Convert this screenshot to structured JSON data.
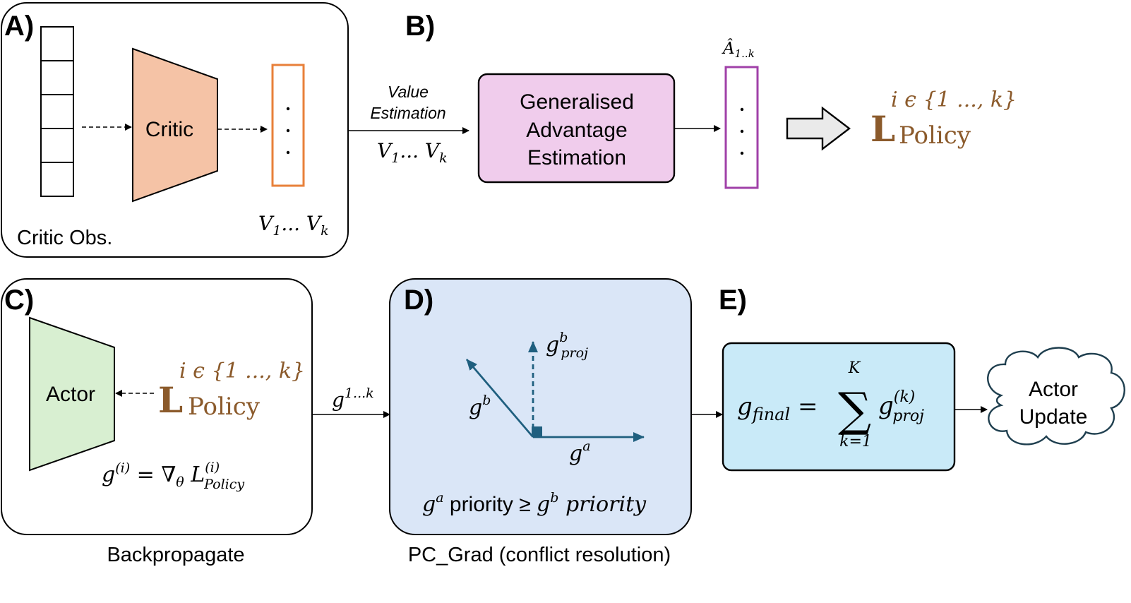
{
  "panels": {
    "a": {
      "label": "A)",
      "input_caption": "Critic Obs.",
      "network": "Critic",
      "output_dots": ". . .",
      "values": "V1... Vk"
    },
    "b": {
      "label": "B)",
      "arrow_text_top": "Value",
      "arrow_text_bottom": "Estimation",
      "arrow_values": "V1... Vk",
      "gae_line1": "Generalised",
      "gae_line2": "Advantage",
      "gae_line3": "Estimation",
      "adv_label": "Â1..k",
      "adv_dots": ". . .",
      "loss_set": "i ϵ {1 ..., k}",
      "loss_L": "L",
      "loss_policy": "Policy"
    },
    "c": {
      "label": "C)",
      "network": "Actor",
      "loss_set": "i ϵ {1 ..., k}",
      "loss_L": "L",
      "loss_policy": "Policy",
      "grad_formula": "g(i) = ∇θ L(i)Policy",
      "caption": "Backpropagate",
      "out_arrow": "g1...k"
    },
    "d": {
      "label": "D)",
      "g_b": "gb",
      "g_a": "ga",
      "g_proj": "gbproj",
      "priority": "ga priority ≥ gb priority",
      "caption": "PC_Grad (conflict resolution)"
    },
    "e": {
      "label": "E)",
      "formula": "gfinal = Σ g(k)proj",
      "sum_upper": "K",
      "sum_lower": "k=1",
      "cloud_line1": "Actor",
      "cloud_line2": "Update"
    }
  },
  "colors": {
    "critic_fill": "#F5C3A6",
    "critic_out": "#E8803A",
    "gae_fill": "#F0CCEC",
    "adv_box": "#A040A8",
    "loss_brown": "#8B5A2B",
    "actor_fill": "#D8EFD1",
    "pcgrad_fill": "#DAE6F7",
    "vector": "#1F5F7F",
    "final_fill": "#C9EAF8"
  }
}
